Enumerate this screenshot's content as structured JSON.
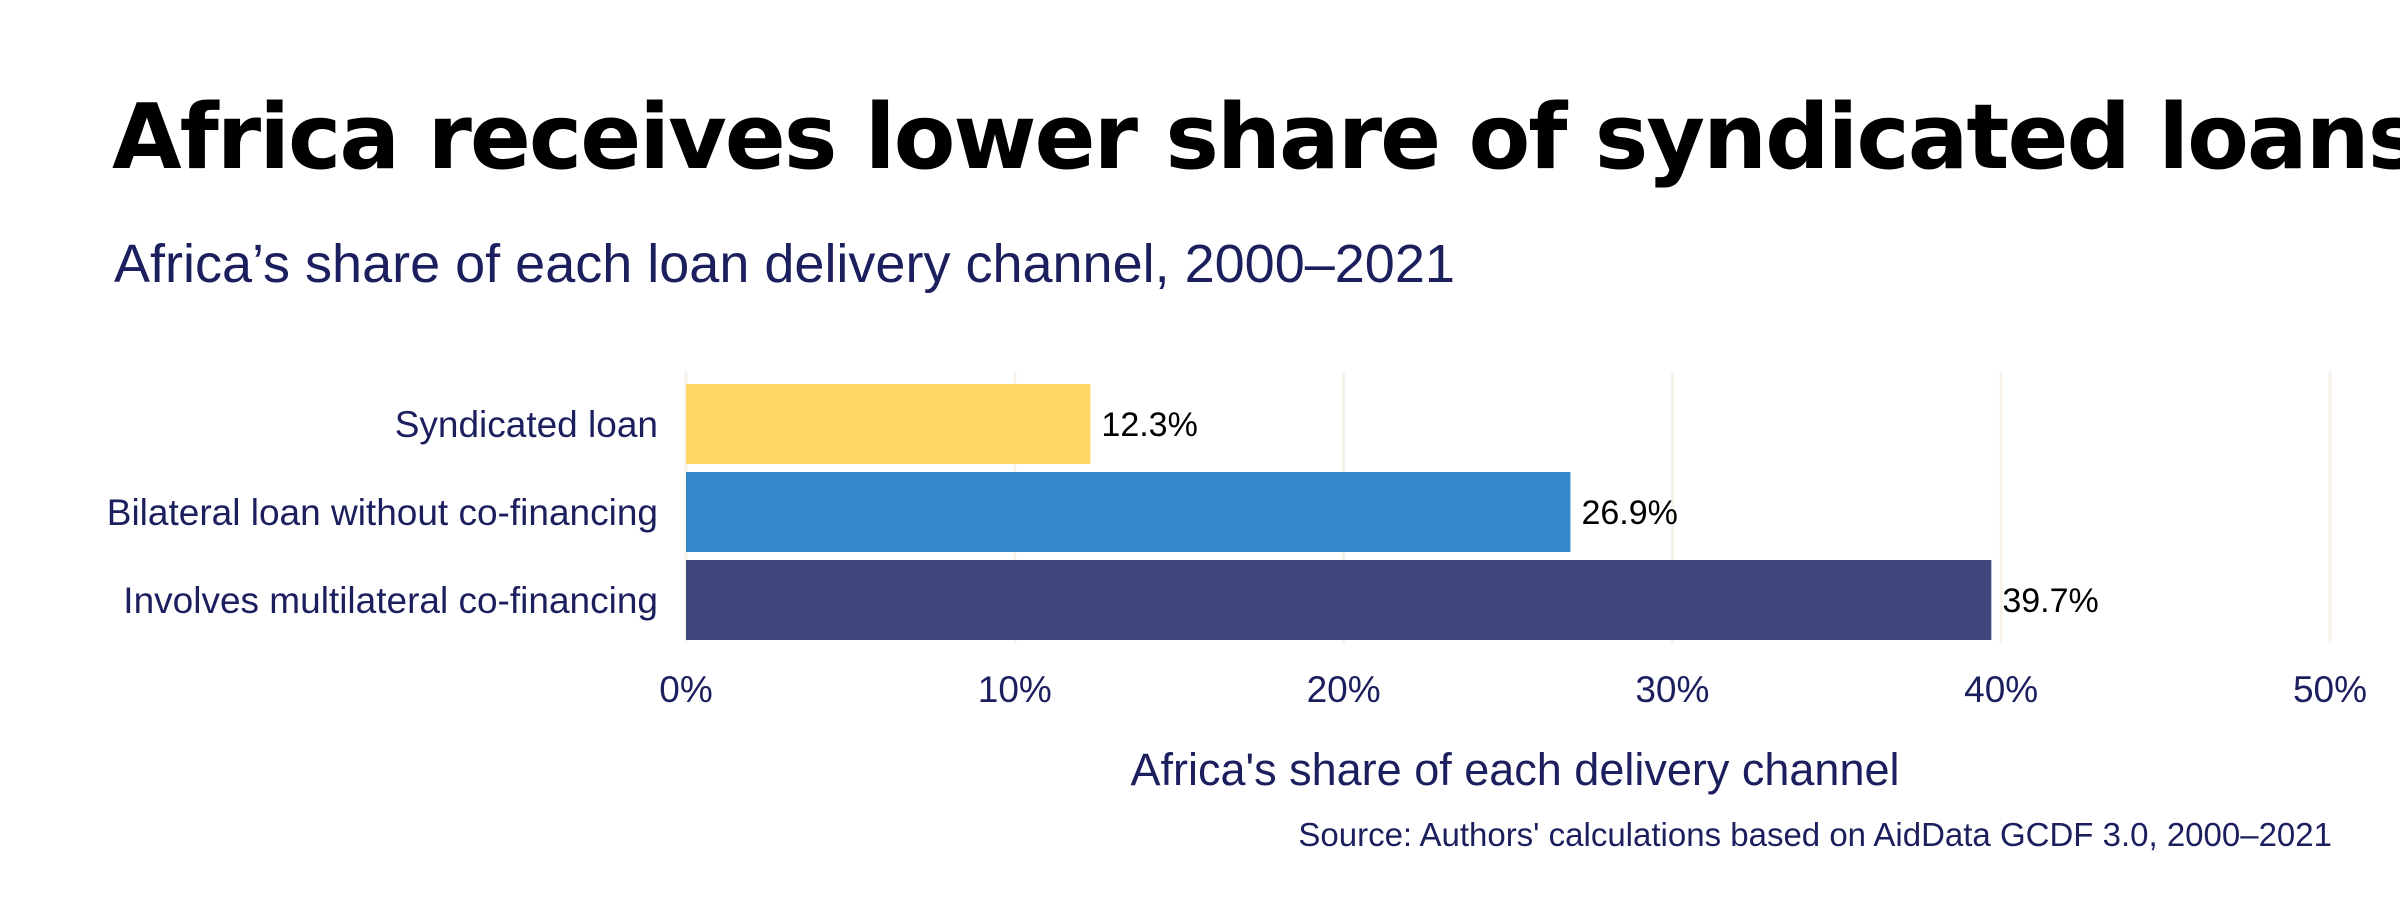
{
  "chart_data": {
    "type": "bar",
    "orientation": "horizontal",
    "title": "Africa receives lower share of syndicated loans",
    "subtitle": "Africa’s share of each loan delivery channel, 2000–2021",
    "xlabel": "Africa's share of each delivery channel",
    "ylabel": "",
    "categories": [
      "Syndicated loan",
      "Bilateral loan without co-financing",
      "Involves multilateral co-financing"
    ],
    "values": [
      12.3,
      26.9,
      39.7
    ],
    "value_labels": [
      "12.3%",
      "26.9%",
      "39.7%"
    ],
    "colors": [
      "#fed766",
      "#3288c9",
      "#40467e"
    ],
    "xlim": [
      0,
      50
    ],
    "ticks": [
      0,
      10,
      20,
      30,
      40,
      50
    ],
    "tick_labels": [
      "0%",
      "10%",
      "20%",
      "30%",
      "40%",
      "50%"
    ],
    "grid": true,
    "grid_color": "#f7f2e8",
    "legend": "none",
    "source": "Source: Authors' calculations based on AidData GCDF 3.0, 2000–2021"
  }
}
